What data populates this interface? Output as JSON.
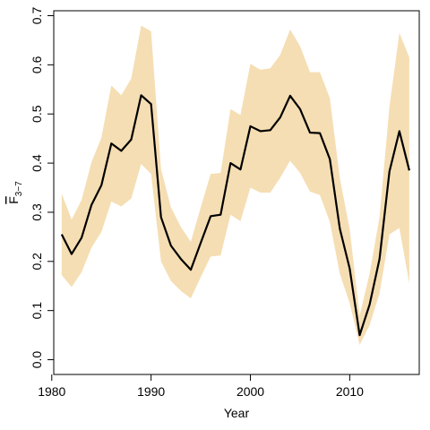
{
  "chart_data": {
    "type": "line",
    "title": "",
    "xlabel": "Year",
    "ylabel": "F",
    "ylabel_subscript": "3−7",
    "xlim": [
      1980.2,
      2017.0
    ],
    "ylim": [
      -0.03,
      0.71
    ],
    "x_ticks": [
      1980,
      1990,
      2000,
      2010
    ],
    "y_ticks": [
      0.0,
      0.1,
      0.2,
      0.3,
      0.4,
      0.5,
      0.6,
      0.7
    ],
    "y_tick_labels": [
      "0.0",
      "0.1",
      "0.2",
      "0.3",
      "0.4",
      "0.5",
      "0.6",
      "0.7"
    ],
    "x_tick_labels": [
      "1980",
      "1990",
      "2000",
      "2010"
    ],
    "grid": false,
    "band_color": "#F5DEB3",
    "line_color": "#000000",
    "x": [
      1981,
      1982,
      1983,
      1984,
      1985,
      1986,
      1987,
      1988,
      1989,
      1990,
      1991,
      1992,
      1993,
      1994,
      1995,
      1996,
      1997,
      1998,
      1999,
      2000,
      2001,
      2002,
      2003,
      2004,
      2005,
      2006,
      2007,
      2008,
      2009,
      2010,
      2011,
      2012,
      2013,
      2014,
      2015,
      2016
    ],
    "series": [
      {
        "values": [
          0.255,
          0.215,
          0.248,
          0.315,
          0.355,
          0.44,
          0.425,
          0.448,
          0.538,
          0.52,
          0.29,
          0.232,
          0.205,
          0.183,
          0.238,
          0.292,
          0.295,
          0.4,
          0.387,
          0.475,
          0.465,
          0.467,
          0.493,
          0.537,
          0.51,
          0.462,
          0.461,
          0.408,
          0.267,
          0.185,
          0.05,
          0.112,
          0.205,
          0.383,
          0.465,
          0.385
        ],
        "upper": [
          0.338,
          0.285,
          0.325,
          0.402,
          0.452,
          0.558,
          0.538,
          0.572,
          0.68,
          0.668,
          0.388,
          0.31,
          0.27,
          0.24,
          0.31,
          0.378,
          0.38,
          0.51,
          0.498,
          0.602,
          0.59,
          0.593,
          0.62,
          0.672,
          0.638,
          0.585,
          0.585,
          0.532,
          0.37,
          0.265,
          0.09,
          0.175,
          0.29,
          0.515,
          0.665,
          0.615
        ],
        "lower": [
          0.172,
          0.148,
          0.178,
          0.228,
          0.26,
          0.322,
          0.312,
          0.328,
          0.398,
          0.378,
          0.2,
          0.16,
          0.14,
          0.125,
          0.168,
          0.21,
          0.212,
          0.295,
          0.282,
          0.35,
          0.34,
          0.34,
          0.37,
          0.405,
          0.38,
          0.342,
          0.335,
          0.28,
          0.175,
          0.115,
          0.03,
          0.07,
          0.135,
          0.255,
          0.268,
          0.155
        ]
      }
    ]
  }
}
